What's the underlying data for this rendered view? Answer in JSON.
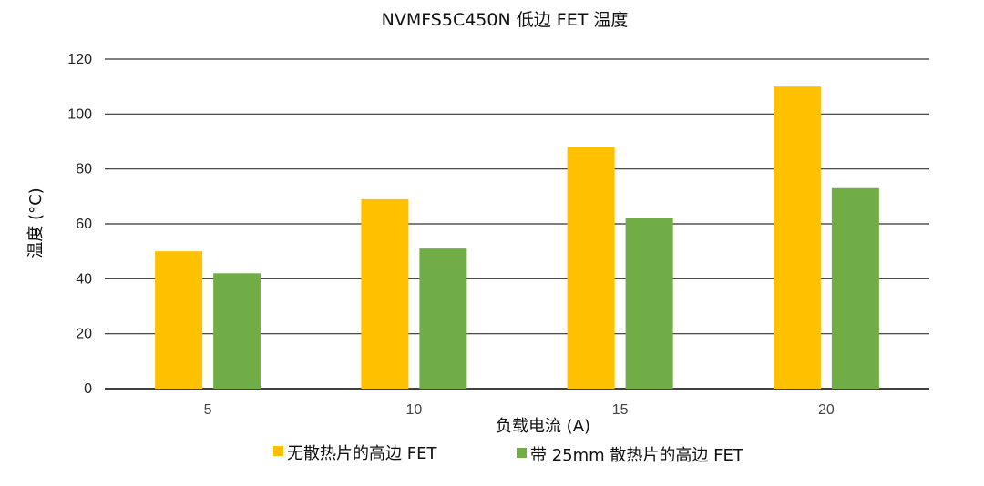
{
  "chart_data": {
    "type": "bar",
    "title": "NVMFS5C450N 低边 FET 温度",
    "xlabel": "负载电流 (A)",
    "ylabel": "温度 (°C)",
    "categories": [
      "5",
      "10",
      "15",
      "20"
    ],
    "ylim": [
      0,
      120
    ],
    "yticks": [
      0,
      20,
      40,
      60,
      80,
      100,
      120
    ],
    "grid": true,
    "legend_position": "bottom",
    "series": [
      {
        "name": "无散热片的高边 FET",
        "color": "#FFC000",
        "values": [
          50,
          69,
          88,
          110
        ]
      },
      {
        "name": "带 25mm 散热片的高边 FET",
        "color": "#70AD47",
        "values": [
          42,
          51,
          62,
          73
        ]
      }
    ]
  }
}
